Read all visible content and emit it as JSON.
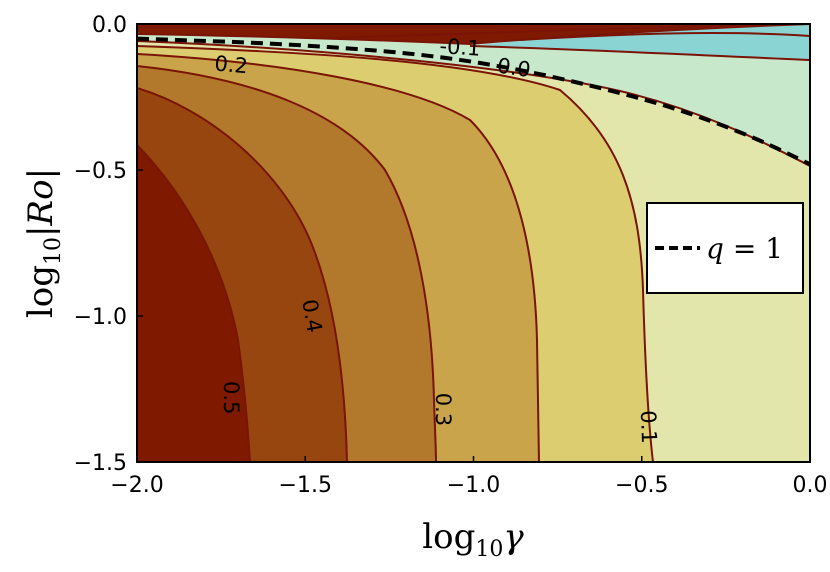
{
  "chart_data": {
    "type": "contour",
    "xlabel": "log10 γ",
    "ylabel": "log10 |Ro|",
    "xlim": [
      -2.0,
      0.0
    ],
    "ylim": [
      -1.5,
      0.0
    ],
    "x_ticks": [
      "−2.0",
      "−1.5",
      "−1.0",
      "−0.5",
      "0.0"
    ],
    "y_ticks": [
      "0.0",
      "−0.5",
      "−1.0",
      "−1.5"
    ],
    "legend": {
      "label": "q = 1",
      "style": "dashed",
      "position": "right"
    },
    "colors": {
      "c05": "#7f1a00",
      "c04": "#97460f",
      "c03": "#b2792c",
      "c02": "#c9a44a",
      "c01": "#dcce70",
      "c00": "#e3e6ab",
      "cneg": "#c8e8cb",
      "cneg2": "#8ad4d4",
      "line": "#7a1406"
    },
    "contours": [
      {
        "level": "0.5",
        "label": "0.5",
        "x_at_bottom": -1.67,
        "label_at": [
          -1.72,
          -1.28
        ]
      },
      {
        "level": "0.4",
        "label": "0.4",
        "x_at_bottom": -1.38,
        "label_at": [
          -1.48,
          -1.0
        ]
      },
      {
        "level": "0.3",
        "label": "0.3",
        "x_at_bottom": -1.11,
        "label_at": [
          -1.09,
          -1.32
        ]
      },
      {
        "level": "0.2",
        "label": "0.2",
        "x_at_bottom": -0.82,
        "label_at": [
          -1.72,
          -0.14
        ]
      },
      {
        "level": "0.1",
        "label": "0.1",
        "x_at_bottom": -0.49,
        "label_at": [
          -0.48,
          -1.38
        ]
      },
      {
        "level": "0.0",
        "label": "0.0",
        "label_at": [
          -0.88,
          -0.15
        ]
      },
      {
        "level": "-0.1",
        "label": "-0.1",
        "label_at": [
          -1.04,
          -0.08
        ]
      }
    ],
    "q1_curve": [
      [
        -2.0,
        -0.05
      ],
      [
        -1.5,
        -0.07
      ],
      [
        -1.0,
        -0.12
      ],
      [
        -0.5,
        -0.25
      ],
      [
        -0.2,
        -0.37
      ],
      [
        0.0,
        -0.48
      ]
    ]
  }
}
